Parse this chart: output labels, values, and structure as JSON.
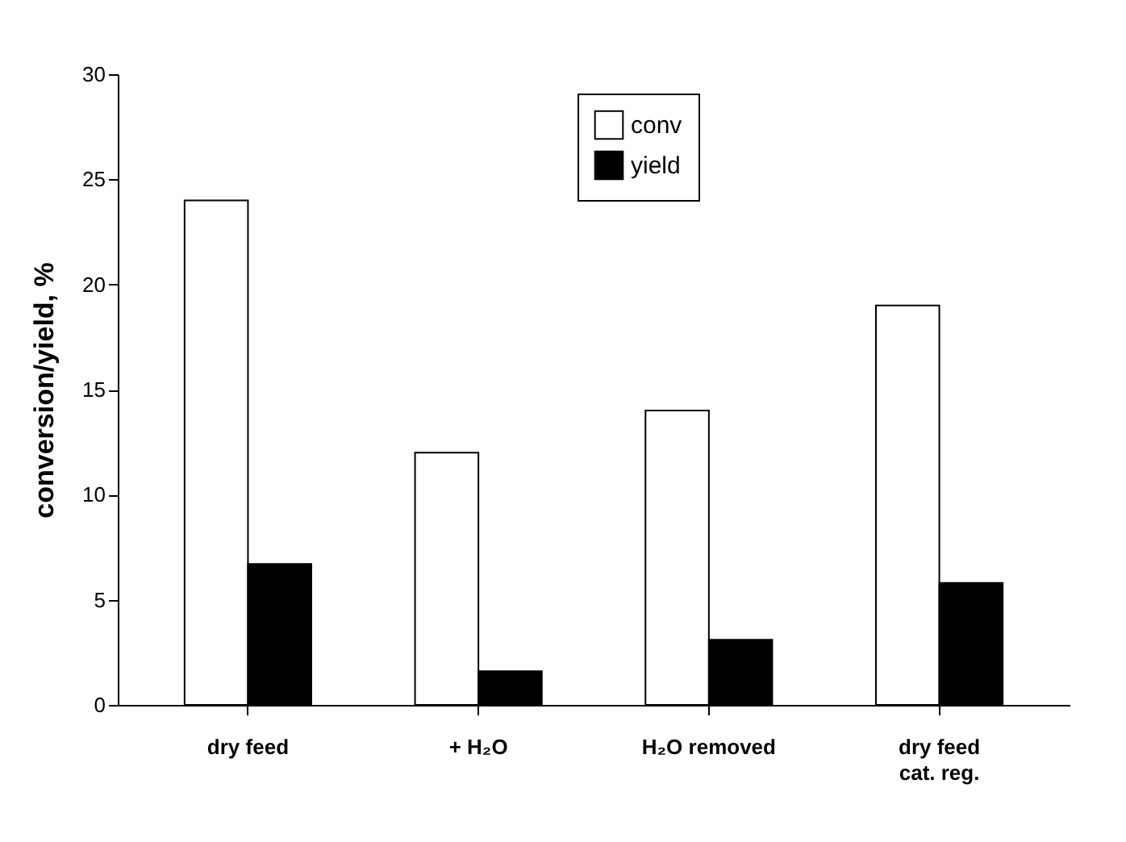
{
  "chart_data": {
    "type": "bar",
    "ylabel": "conversion/yield, %",
    "categories": [
      "dry feed",
      "+ H₂O",
      "H₂O removed",
      "dry feed\ncat. reg."
    ],
    "series": [
      {
        "name": "conv",
        "color": "#ffffff",
        "values": [
          24,
          12,
          14,
          19
        ]
      },
      {
        "name": "yield",
        "color": "#000000",
        "values": [
          6.7,
          1.6,
          3.1,
          5.8
        ]
      }
    ],
    "ylim": [
      0,
      30
    ],
    "yticks": [
      0,
      5,
      10,
      15,
      20,
      25,
      30
    ],
    "legend": "top"
  }
}
